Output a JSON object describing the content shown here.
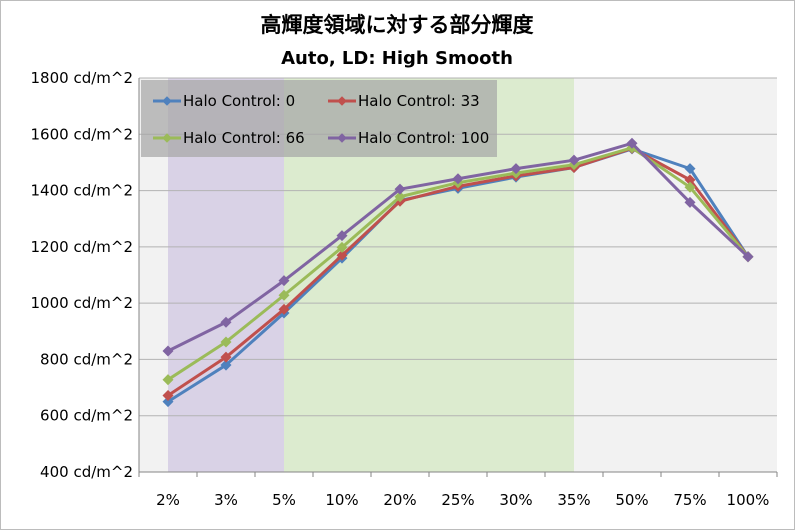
{
  "chart_data": {
    "type": "line",
    "title": "高輝度領域に対する部分輝度",
    "subtitle": "Auto, LD: High Smooth",
    "categories": [
      "2%",
      "3%",
      "5%",
      "10%",
      "20%",
      "25%",
      "30%",
      "35%",
      "50%",
      "75%",
      "100%"
    ],
    "y_tick_labels": [
      "400 cd/m^2",
      "600 cd/m^2",
      "800 cd/m^2",
      "1000 cd/m^2",
      "1200 cd/m^2",
      "1400 cd/m^2",
      "1600 cd/m^2",
      "1800 cd/m^2"
    ],
    "ylim": [
      400,
      1800
    ],
    "y_ticks": [
      400,
      600,
      800,
      1000,
      1200,
      1400,
      1600,
      1800
    ],
    "grid": true,
    "legend_position": "top-left",
    "shaded_regions": [
      {
        "from": "2%",
        "to": "5%",
        "color": "#d9d2e6"
      },
      {
        "from": "5%",
        "to": "35%",
        "color": "#dcebcf"
      }
    ],
    "series": [
      {
        "name": "Halo Control: 0",
        "color": "#4f81bd",
        "values": [
          650,
          780,
          965,
          1160,
          1365,
          1408,
          1448,
          1482,
          1548,
          1478,
          1165
        ]
      },
      {
        "name": "Halo Control: 33",
        "color": "#c0504d",
        "values": [
          672,
          808,
          978,
          1170,
          1362,
          1415,
          1452,
          1482,
          1550,
          1438,
          1165
        ]
      },
      {
        "name": "Halo Control: 66",
        "color": "#9bbb59",
        "values": [
          728,
          862,
          1028,
          1198,
          1378,
          1428,
          1462,
          1492,
          1552,
          1412,
          1165
        ]
      },
      {
        "name": "Halo Control: 100",
        "color": "#8064a2",
        "values": [
          830,
          932,
          1080,
          1240,
          1405,
          1442,
          1478,
          1508,
          1568,
          1358,
          1165
        ]
      }
    ]
  }
}
